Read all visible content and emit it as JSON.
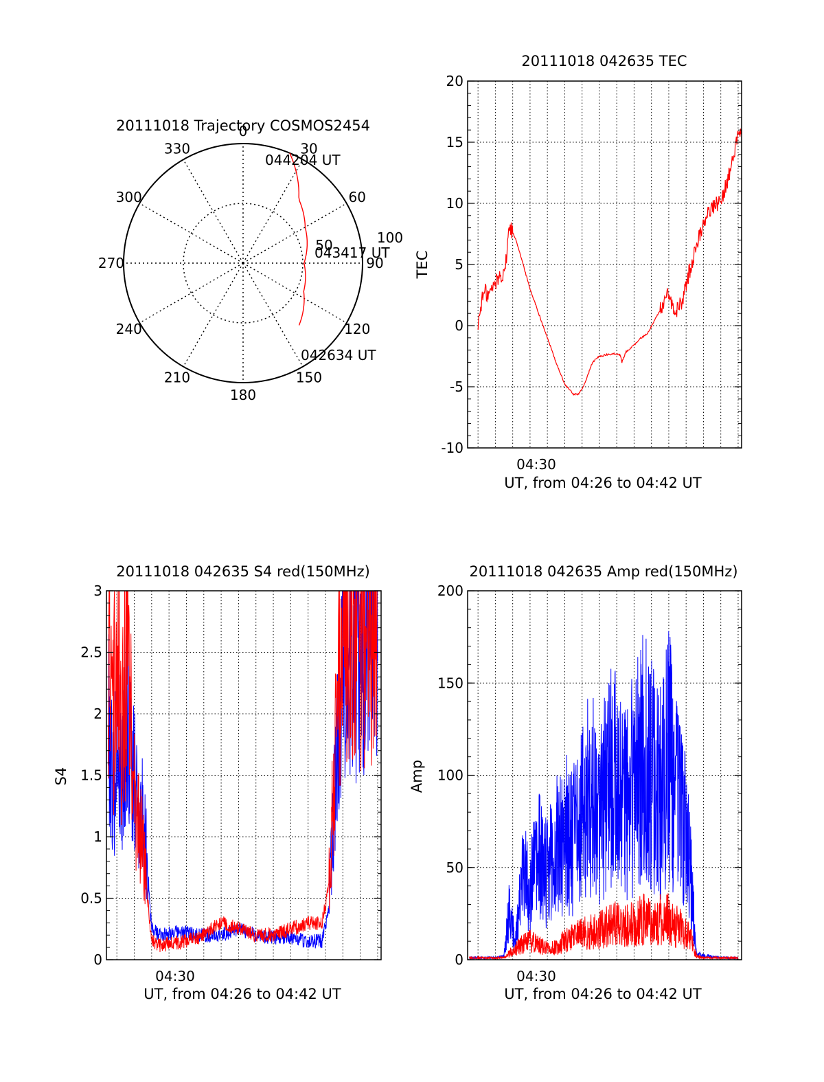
{
  "colors": {
    "red": "#ff0000",
    "blue": "#0000ff",
    "axis": "#000000",
    "grid": "#000000"
  },
  "chart_data": [
    {
      "type": "polar",
      "title": "20111018 Trajectory COSMOS2454",
      "angle_labels": [
        "0",
        "30",
        "60",
        "90",
        "120",
        "150",
        "180",
        "210",
        "240",
        "270",
        "300",
        "330"
      ],
      "radial_labels": [
        "50",
        "100"
      ],
      "radial_range": [
        0,
        100
      ],
      "grid": true,
      "trajectory_points": [
        {
          "azimuth": 23,
          "elevation": 100,
          "label": "044204 UT"
        },
        {
          "azimuth": 41,
          "elevation": 71
        },
        {
          "azimuth": 60,
          "elevation": 60
        },
        {
          "azimuth": 90,
          "elevation": 51,
          "label": "043417 UT"
        },
        {
          "azimuth": 115,
          "elevation": 56
        },
        {
          "azimuth": 138,
          "elevation": 70,
          "label": "042634 UT"
        }
      ],
      "annotations": [
        "044204 UT",
        "043417 UT",
        "042634 UT"
      ]
    },
    {
      "type": "line",
      "title": "20111018 042635 TEC",
      "xlabel": "UT, from 04:26 to 04:42 UT",
      "ylabel": "TEC",
      "x_tick_labels": [
        "04:30"
      ],
      "xlim_minutes": [
        26.4,
        42.2
      ],
      "ylim": [
        -10,
        20
      ],
      "y_ticks": [
        "-10",
        "-5",
        "0",
        "5",
        "10",
        "15",
        "20"
      ],
      "grid": true,
      "series": [
        {
          "color": "red",
          "x": [
            27.0,
            27.2,
            27.4,
            27.6,
            27.8,
            28.0,
            28.2,
            28.4,
            28.6,
            28.8,
            29.2,
            29.6,
            30.0,
            30.5,
            31.0,
            31.5,
            32.0,
            32.5,
            32.8,
            33.0,
            33.3,
            33.6,
            34.0,
            34.4,
            34.8,
            35.2,
            35.3,
            35.5,
            36.0,
            36.4,
            36.8,
            37.2,
            37.6,
            37.9,
            38.1,
            38.4,
            38.8,
            39.2,
            39.6,
            40.0,
            40.4,
            40.8,
            41.2,
            41.6,
            42.0,
            42.2
          ],
          "y": [
            0.0,
            2.0,
            2.8,
            2.5,
            3.0,
            3.5,
            4.0,
            4.2,
            5.0,
            8.2,
            7.0,
            5.0,
            3.0,
            1.0,
            -1.0,
            -3.0,
            -4.8,
            -5.6,
            -5.6,
            -5.2,
            -4.2,
            -3.0,
            -2.5,
            -2.4,
            -2.3,
            -2.4,
            -3.0,
            -2.2,
            -1.6,
            -1.0,
            -0.6,
            0.5,
            1.5,
            2.4,
            2.0,
            1.0,
            2.2,
            4.5,
            6.5,
            8.5,
            9.5,
            10.0,
            11.0,
            13.0,
            15.5,
            16.5
          ]
        }
      ]
    },
    {
      "type": "line",
      "title": "20111018 042635 S4 red(150MHz)",
      "xlabel": "UT, from 04:26 to 04:42 UT",
      "ylabel": "S4",
      "x_tick_labels": [
        "04:30"
      ],
      "xlim_minutes": [
        26.4,
        42.2
      ],
      "ylim": [
        0,
        3
      ],
      "y_ticks": [
        "0",
        "0.5",
        "1",
        "1.5",
        "2",
        "2.5",
        "3"
      ],
      "grid": true,
      "series": [
        {
          "color": "blue",
          "x": [
            26.5,
            26.8,
            27.0,
            27.3,
            27.6,
            28.0,
            28.4,
            28.7,
            29.0,
            29.5,
            30.0,
            31.0,
            32.0,
            33.0,
            34.0,
            35.0,
            36.0,
            37.0,
            38.0,
            38.8,
            39.2,
            39.6,
            40.0,
            40.5,
            41.0,
            41.5,
            42.0
          ],
          "y": [
            2.0,
            1.4,
            1.8,
            1.5,
            1.9,
            1.4,
            1.2,
            0.9,
            0.25,
            0.2,
            0.22,
            0.22,
            0.2,
            0.2,
            0.25,
            0.2,
            0.18,
            0.18,
            0.15,
            0.15,
            0.4,
            1.5,
            2.5,
            2.6,
            2.4,
            2.8,
            2.6
          ]
        },
        {
          "color": "red",
          "x": [
            26.5,
            26.8,
            27.0,
            27.3,
            27.6,
            28.0,
            28.4,
            28.7,
            29.0,
            29.5,
            30.0,
            31.0,
            32.0,
            33.0,
            34.0,
            35.0,
            36.0,
            37.0,
            38.0,
            38.8,
            39.2,
            39.6,
            40.0,
            40.5,
            41.0,
            41.5,
            42.0
          ],
          "y": [
            2.4,
            1.9,
            2.7,
            1.8,
            2.5,
            1.3,
            1.0,
            0.6,
            0.15,
            0.12,
            0.13,
            0.15,
            0.2,
            0.3,
            0.25,
            0.2,
            0.2,
            0.25,
            0.3,
            0.3,
            0.6,
            1.8,
            2.8,
            2.9,
            2.7,
            2.9,
            2.8
          ]
        }
      ]
    },
    {
      "type": "line",
      "title": "20111018 042635 Amp red(150MHz)",
      "xlabel": "UT, from 04:26 to 04:42 UT",
      "ylabel": "Amp",
      "x_tick_labels": [
        "04:30"
      ],
      "xlim_minutes": [
        26.4,
        42.2
      ],
      "ylim": [
        0,
        200
      ],
      "y_ticks": [
        "0",
        "50",
        "100",
        "150",
        "200"
      ],
      "grid": true,
      "series": [
        {
          "color": "blue",
          "x": [
            26.5,
            28.0,
            28.5,
            28.8,
            29.1,
            29.6,
            30.0,
            30.5,
            31.0,
            31.5,
            32.0,
            32.5,
            33.0,
            33.5,
            34.0,
            34.5,
            35.0,
            35.5,
            36.0,
            36.5,
            37.0,
            37.5,
            38.0,
            38.5,
            39.0,
            39.3,
            39.6,
            40.0,
            41.0,
            42.0
          ],
          "y": [
            1,
            1,
            2,
            30,
            10,
            45,
            40,
            55,
            48,
            60,
            70,
            65,
            80,
            90,
            85,
            95,
            100,
            85,
            95,
            110,
            100,
            90,
            110,
            85,
            70,
            40,
            3,
            2,
            1,
            1
          ]
        },
        {
          "color": "red",
          "x": [
            26.5,
            28.0,
            28.5,
            29.0,
            29.5,
            30.0,
            30.5,
            31.0,
            31.5,
            32.0,
            32.5,
            33.0,
            33.5,
            34.0,
            34.5,
            35.0,
            35.5,
            36.0,
            36.5,
            37.0,
            37.5,
            38.0,
            38.5,
            39.0,
            39.3,
            39.6,
            40.0,
            42.0
          ],
          "y": [
            1,
            1,
            1,
            5,
            8,
            10,
            8,
            6,
            7,
            10,
            12,
            14,
            15,
            16,
            18,
            20,
            18,
            20,
            22,
            20,
            22,
            22,
            18,
            15,
            10,
            2,
            1,
            1
          ]
        }
      ]
    }
  ]
}
